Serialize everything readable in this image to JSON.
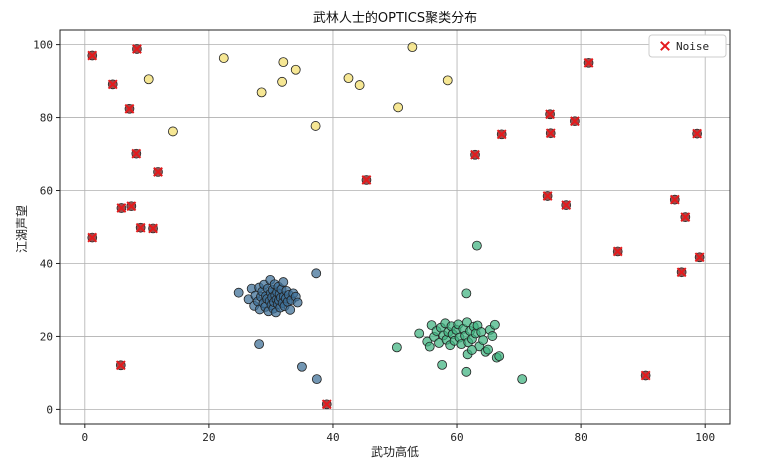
{
  "chart_data": {
    "type": "scatter",
    "title": "武林人士的OPTICS聚类分布",
    "xlabel": "武功高低",
    "ylabel": "江湖声望",
    "xlim": [
      -4,
      104
    ],
    "ylim": [
      -4,
      104
    ],
    "xticks": [
      0,
      20,
      40,
      60,
      80,
      100
    ],
    "yticks": [
      0,
      20,
      40,
      60,
      80,
      100
    ],
    "grid": true,
    "legend": {
      "placement": "top-right",
      "entries": [
        "Noise"
      ]
    },
    "colors": {
      "cluster_blue": "#3b6e96",
      "cluster_green": "#3fb37f",
      "cluster_yellow": "#f2de6b",
      "noise": "#e41a1c",
      "marker_edge": "#222222"
    },
    "series": [
      {
        "color_key": "cluster_blue",
        "points": [
          [
            24.8,
            32
          ],
          [
            26.4,
            30.2
          ],
          [
            26.9,
            33.1
          ],
          [
            27.3,
            28.4
          ],
          [
            27.5,
            31.2
          ],
          [
            27.9,
            29.6
          ],
          [
            28.1,
            33.4
          ],
          [
            28.2,
            27.4
          ],
          [
            28.4,
            30.9
          ],
          [
            28.6,
            32.3
          ],
          [
            28.8,
            29.1
          ],
          [
            28.9,
            34.2
          ],
          [
            29.1,
            28.1
          ],
          [
            29.2,
            31.1
          ],
          [
            29.4,
            30.3
          ],
          [
            29.5,
            33.1
          ],
          [
            29.6,
            26.9
          ],
          [
            29.8,
            29.7
          ],
          [
            29.9,
            35.5
          ],
          [
            30.0,
            31.9
          ],
          [
            30.1,
            28.6
          ],
          [
            30.2,
            30.7
          ],
          [
            30.3,
            32.8
          ],
          [
            30.4,
            27.6
          ],
          [
            30.5,
            29.4
          ],
          [
            30.6,
            34.3
          ],
          [
            30.7,
            31.3
          ],
          [
            30.8,
            26.6
          ],
          [
            30.9,
            30.1
          ],
          [
            31.0,
            32.1
          ],
          [
            31.1,
            28.9
          ],
          [
            31.2,
            33.6
          ],
          [
            31.3,
            29.9
          ],
          [
            31.4,
            31.6
          ],
          [
            31.5,
            27.9
          ],
          [
            31.6,
            30.6
          ],
          [
            31.7,
            32.9
          ],
          [
            31.9,
            29.2
          ],
          [
            32.0,
            34.9
          ],
          [
            32.1,
            31.0
          ],
          [
            32.2,
            28.3
          ],
          [
            32.4,
            30.4
          ],
          [
            32.5,
            32.5
          ],
          [
            32.7,
            29.5
          ],
          [
            32.9,
            31.4
          ],
          [
            33.1,
            27.3
          ],
          [
            33.3,
            30.0
          ],
          [
            33.6,
            31.8
          ],
          [
            34.0,
            30.9
          ],
          [
            34.3,
            29.3
          ],
          [
            28.1,
            17.9
          ],
          [
            35.0,
            11.7
          ],
          [
            37.3,
            37.3
          ],
          [
            37.4,
            8.3
          ]
        ]
      },
      {
        "color_key": "cluster_green",
        "points": [
          [
            50.3,
            17.0
          ],
          [
            53.9,
            20.8
          ],
          [
            55.2,
            18.6
          ],
          [
            55.6,
            17.2
          ],
          [
            55.9,
            23.1
          ],
          [
            56.3,
            19.9
          ],
          [
            56.7,
            21.5
          ],
          [
            57.1,
            18.2
          ],
          [
            57.4,
            22.4
          ],
          [
            57.8,
            20.3
          ],
          [
            58.1,
            23.6
          ],
          [
            58.3,
            19.1
          ],
          [
            58.6,
            21.2
          ],
          [
            58.9,
            17.6
          ],
          [
            59.1,
            22.8
          ],
          [
            59.3,
            20.6
          ],
          [
            59.6,
            18.8
          ],
          [
            59.9,
            21.8
          ],
          [
            60.2,
            23.3
          ],
          [
            60.4,
            19.7
          ],
          [
            60.7,
            17.9
          ],
          [
            61.0,
            22.1
          ],
          [
            61.3,
            20.2
          ],
          [
            61.6,
            23.9
          ],
          [
            61.8,
            18.4
          ],
          [
            62.1,
            21.5
          ],
          [
            62.4,
            19.3
          ],
          [
            62.7,
            22.7
          ],
          [
            63.0,
            20.8
          ],
          [
            63.3,
            23.0
          ],
          [
            63.6,
            17.3
          ],
          [
            63.9,
            21.2
          ],
          [
            64.2,
            19.0
          ],
          [
            64.6,
            15.8
          ],
          [
            65.0,
            16.4
          ],
          [
            65.3,
            21.8
          ],
          [
            65.7,
            20.1
          ],
          [
            66.1,
            23.2
          ],
          [
            66.4,
            14.2
          ],
          [
            66.8,
            14.6
          ],
          [
            61.7,
            15.1
          ],
          [
            61.5,
            10.3
          ],
          [
            61.5,
            31.8
          ],
          [
            63.2,
            44.9
          ],
          [
            70.5,
            8.3
          ],
          [
            57.6,
            12.2
          ],
          [
            62.4,
            16.3
          ]
        ]
      },
      {
        "color_key": "cluster_yellow",
        "points": [
          [
            22.4,
            96.3
          ],
          [
            28.5,
            86.9
          ],
          [
            31.8,
            89.8
          ],
          [
            32.0,
            95.2
          ],
          [
            34.0,
            93.1
          ],
          [
            37.2,
            77.7
          ],
          [
            42.5,
            90.8
          ],
          [
            44.3,
            88.9
          ],
          [
            50.5,
            82.8
          ],
          [
            52.8,
            99.3
          ],
          [
            58.5,
            90.2
          ],
          [
            10.3,
            90.5
          ],
          [
            14.2,
            76.2
          ]
        ]
      },
      {
        "name": "Noise",
        "color_key": "noise",
        "points": [
          [
            1.2,
            97.0
          ],
          [
            4.5,
            89.1
          ],
          [
            7.2,
            82.4
          ],
          [
            8.4,
            98.8
          ],
          [
            8.3,
            70.1
          ],
          [
            11.8,
            65.1
          ],
          [
            5.9,
            55.2
          ],
          [
            7.5,
            55.7
          ],
          [
            9.0,
            49.8
          ],
          [
            11.0,
            49.6
          ],
          [
            1.2,
            47.1
          ],
          [
            5.8,
            12.1
          ],
          [
            39.0,
            1.4
          ],
          [
            45.4,
            62.9
          ],
          [
            62.9,
            69.8
          ],
          [
            67.2,
            75.4
          ],
          [
            75.0,
            80.9
          ],
          [
            75.1,
            75.7
          ],
          [
            79.0,
            79.0
          ],
          [
            81.2,
            95.0
          ],
          [
            74.6,
            58.5
          ],
          [
            77.6,
            56.0
          ],
          [
            85.9,
            43.3
          ],
          [
            90.4,
            9.3
          ],
          [
            95.1,
            57.5
          ],
          [
            96.8,
            52.7
          ],
          [
            96.2,
            37.6
          ],
          [
            98.7,
            75.6
          ],
          [
            99.1,
            41.7
          ]
        ]
      }
    ]
  }
}
